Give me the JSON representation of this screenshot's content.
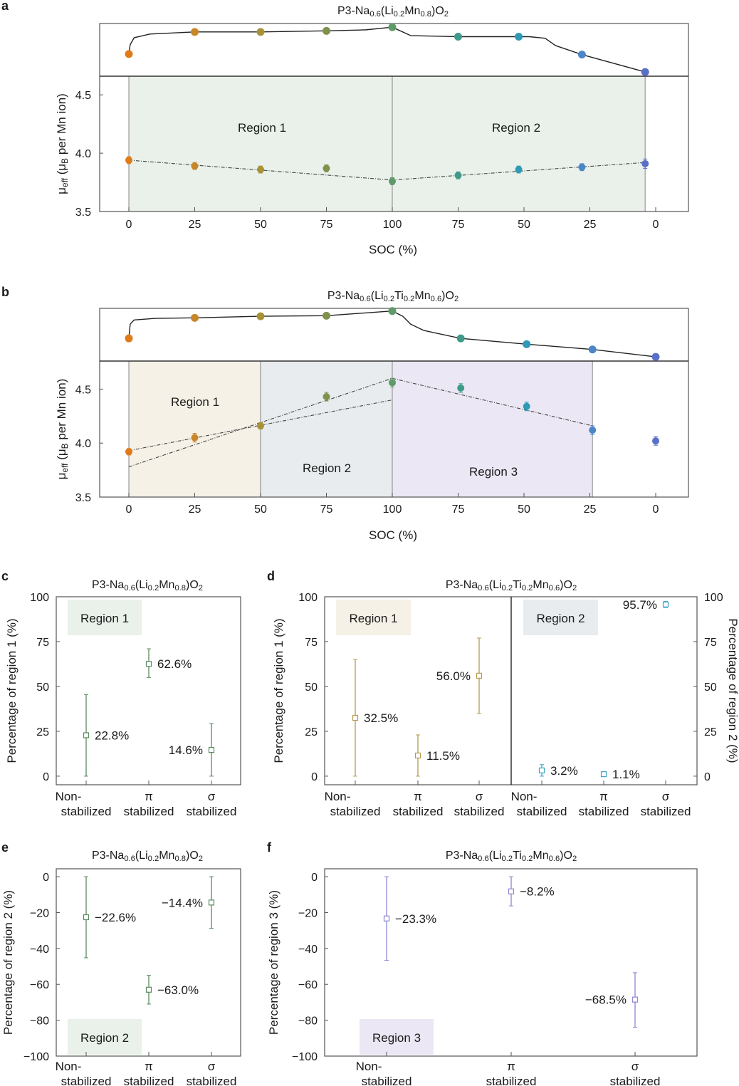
{
  "panel_letters": [
    "a",
    "b",
    "c",
    "d",
    "e",
    "f"
  ],
  "chart_data": [
    {
      "id": "a",
      "type": "scatter",
      "title": [
        [
          "P3-Na",
          0
        ],
        [
          "0.6",
          1
        ],
        [
          "(Li",
          0
        ],
        [
          "0.2",
          1
        ],
        [
          "Mn",
          0
        ],
        [
          "0.8",
          1
        ],
        [
          ")O",
          0
        ],
        [
          "2",
          1
        ]
      ],
      "xlabel": "SOC (%)",
      "ylabel": [
        [
          "μ",
          0
        ],
        [
          "eff",
          1
        ],
        [
          " (",
          0
        ],
        [
          "μ",
          0
        ],
        [
          "B",
          1
        ],
        [
          " per Mn ion)",
          0
        ]
      ],
      "x_tick_labels": [
        "0",
        "25",
        "50",
        "75",
        "100",
        "75",
        "50",
        "25",
        "0"
      ],
      "y_ticks": [
        3.5,
        4.0,
        4.5
      ],
      "y_tick_labels": [
        "3.5",
        "4.0",
        "4.5"
      ],
      "ylim": [
        3.5,
        4.66
      ],
      "regions": [
        {
          "label": "Region 1",
          "from": {
            "phase": "charge",
            "soc": 0
          },
          "to": {
            "phase": "charge",
            "soc": 100
          },
          "color": "#e9f1ea"
        },
        {
          "label": "Region 2",
          "from": {
            "phase": "charge",
            "soc": 100
          },
          "to": {
            "phase": "discharge",
            "soc": 4
          },
          "color": "#e9f1ea"
        }
      ],
      "points": [
        {
          "phase": "charge",
          "soc": 0,
          "value": 3.94,
          "err": 0.03,
          "level": 0.42,
          "color": "#e07b1a"
        },
        {
          "phase": "charge",
          "soc": 25,
          "value": 3.89,
          "err": 0.03,
          "level": 0.84,
          "color": "#c8862a"
        },
        {
          "phase": "charge",
          "soc": 50,
          "value": 3.86,
          "err": 0.03,
          "level": 0.84,
          "color": "#a89238"
        },
        {
          "phase": "charge",
          "soc": 75,
          "value": 3.87,
          "err": 0.03,
          "level": 0.86,
          "color": "#7f914b"
        },
        {
          "phase": "charge",
          "soc": 100,
          "value": 3.76,
          "err": 0.03,
          "level": 0.93,
          "color": "#5e9a6a"
        },
        {
          "phase": "discharge",
          "soc": 75,
          "value": 3.81,
          "err": 0.03,
          "level": 0.75,
          "color": "#3f9a8a"
        },
        {
          "phase": "discharge",
          "soc": 52,
          "value": 3.86,
          "err": 0.03,
          "level": 0.75,
          "color": "#2e9ab5"
        },
        {
          "phase": "discharge",
          "soc": 28,
          "value": 3.88,
          "err": 0.03,
          "level": 0.41,
          "color": "#4b86c6"
        },
        {
          "phase": "discharge",
          "soc": 4,
          "value": 3.91,
          "err": 0.04,
          "level": 0.08,
          "color": "#5a70c8"
        }
      ],
      "fit_lines": [
        [
          {
            "phase": "charge",
            "soc": 0,
            "value": 3.94
          },
          {
            "phase": "charge",
            "soc": 100,
            "value": 3.77
          },
          {
            "phase": "discharge",
            "soc": 4,
            "value": 3.92
          }
        ]
      ],
      "voltage_profile": {
        "charge": [
          [
            0,
            0.42
          ],
          [
            0.5,
            0.6
          ],
          [
            2,
            0.73
          ],
          [
            8,
            0.8
          ],
          [
            25,
            0.84
          ],
          [
            50,
            0.84
          ],
          [
            75,
            0.86
          ],
          [
            90,
            0.88
          ],
          [
            100,
            0.93
          ]
        ],
        "discharge": [
          [
            100,
            0.93
          ],
          [
            93,
            0.77
          ],
          [
            75,
            0.75
          ],
          [
            48,
            0.75
          ],
          [
            42,
            0.72
          ],
          [
            38,
            0.58
          ],
          [
            35,
            0.53
          ],
          [
            28,
            0.41
          ],
          [
            4,
            0.08
          ]
        ]
      }
    },
    {
      "id": "b",
      "type": "scatter",
      "title": [
        [
          "P3-Na",
          0
        ],
        [
          "0.6",
          1
        ],
        [
          "(Li",
          0
        ],
        [
          "0.2",
          1
        ],
        [
          "Ti",
          0
        ],
        [
          "0.2",
          1
        ],
        [
          "Mn",
          0
        ],
        [
          "0.6",
          1
        ],
        [
          ")O",
          0
        ],
        [
          "2",
          1
        ]
      ],
      "xlabel": "SOC (%)",
      "ylabel": [
        [
          "μ",
          0
        ],
        [
          "eff",
          1
        ],
        [
          " (",
          0
        ],
        [
          "μ",
          0
        ],
        [
          "B",
          1
        ],
        [
          " per Mn ion)",
          0
        ]
      ],
      "x_tick_labels": [
        "0",
        "25",
        "50",
        "75",
        "100",
        "75",
        "50",
        "25",
        "0"
      ],
      "y_ticks": [
        3.5,
        4.0,
        4.5
      ],
      "y_tick_labels": [
        "3.5",
        "4.0",
        "4.5"
      ],
      "ylim": [
        3.5,
        4.76
      ],
      "regions": [
        {
          "label": "Region 1",
          "from": {
            "phase": "charge",
            "soc": 0
          },
          "to": {
            "phase": "charge",
            "soc": 50
          },
          "color": "#f5f1e7"
        },
        {
          "label": "Region 2",
          "from": {
            "phase": "charge",
            "soc": 50
          },
          "to": {
            "phase": "charge",
            "soc": 100
          },
          "color": "#e8ecee"
        },
        {
          "label": "Region 3",
          "from": {
            "phase": "charge",
            "soc": 100
          },
          "to": {
            "phase": "discharge",
            "soc": 24
          },
          "color": "#ebe7f4"
        }
      ],
      "points": [
        {
          "phase": "charge",
          "soc": 0,
          "value": 3.92,
          "err": 0.03,
          "level": 0.43,
          "color": "#e07b1a"
        },
        {
          "phase": "charge",
          "soc": 25,
          "value": 4.05,
          "err": 0.04,
          "level": 0.82,
          "color": "#c8862a"
        },
        {
          "phase": "charge",
          "soc": 50,
          "value": 4.16,
          "err": 0.03,
          "level": 0.85,
          "color": "#a89238"
        },
        {
          "phase": "charge",
          "soc": 75,
          "value": 4.43,
          "err": 0.04,
          "level": 0.86,
          "color": "#7f914b"
        },
        {
          "phase": "charge",
          "soc": 100,
          "value": 4.56,
          "err": 0.04,
          "level": 0.95,
          "color": "#5e9a6a"
        },
        {
          "phase": "discharge",
          "soc": 74,
          "value": 4.51,
          "err": 0.04,
          "level": 0.43,
          "color": "#3f9a8a"
        },
        {
          "phase": "discharge",
          "soc": 49,
          "value": 4.34,
          "err": 0.04,
          "level": 0.32,
          "color": "#2e9ab5"
        },
        {
          "phase": "discharge",
          "soc": 24,
          "value": 4.12,
          "err": 0.04,
          "level": 0.22,
          "color": "#4b86c6"
        },
        {
          "phase": "discharge",
          "soc": 0,
          "value": 4.02,
          "err": 0.04,
          "level": 0.08,
          "color": "#5a70c8"
        }
      ],
      "fit_lines": [
        [
          {
            "phase": "charge",
            "soc": 0,
            "value": 3.93
          },
          {
            "phase": "charge",
            "soc": 100,
            "value": 4.4
          }
        ],
        [
          {
            "phase": "charge",
            "soc": 0,
            "value": 3.78
          },
          {
            "phase": "charge",
            "soc": 100,
            "value": 4.6
          }
        ],
        [
          {
            "phase": "charge",
            "soc": 100,
            "value": 4.6
          },
          {
            "phase": "discharge",
            "soc": 24,
            "value": 4.16
          }
        ]
      ],
      "voltage_profile": {
        "charge": [
          [
            0,
            0.43
          ],
          [
            0.5,
            0.7
          ],
          [
            2,
            0.78
          ],
          [
            10,
            0.81
          ],
          [
            25,
            0.82
          ],
          [
            50,
            0.85
          ],
          [
            75,
            0.86
          ],
          [
            100,
            0.95
          ]
        ],
        "discharge": [
          [
            100,
            0.95
          ],
          [
            96,
            0.85
          ],
          [
            93,
            0.7
          ],
          [
            88,
            0.58
          ],
          [
            74,
            0.43
          ],
          [
            49,
            0.32
          ],
          [
            24,
            0.22
          ],
          [
            0,
            0.08
          ]
        ]
      }
    },
    {
      "id": "c",
      "type": "scatter",
      "title": [
        [
          "P3-Na",
          0
        ],
        [
          "0.6",
          1
        ],
        [
          "(Li",
          0
        ],
        [
          "0.2",
          1
        ],
        [
          "Mn",
          0
        ],
        [
          "0.8",
          1
        ],
        [
          ")O",
          0
        ],
        [
          "2",
          1
        ]
      ],
      "ylabel": "Percentage of region 1 (%)",
      "ylim": [
        -4.8,
        100
      ],
      "y_ticks": [
        0,
        25,
        50,
        75,
        100
      ],
      "y_tick_labels": [
        "0",
        "25",
        "50",
        "75",
        "100"
      ],
      "categories": [
        [
          "Non-",
          "stabilized"
        ],
        [
          "π",
          "stabilized"
        ],
        [
          "σ",
          "stabilized"
        ]
      ],
      "region_label": "Region 1",
      "region_color": "#e9f1ea",
      "series": [
        {
          "color": "#5a8a5e",
          "values": [
            22.8,
            62.6,
            14.6
          ],
          "err_low": [
            0,
            55,
            0
          ],
          "err_high": [
            45.5,
            71,
            29.3
          ],
          "labels": [
            "22.8%",
            "62.6%",
            "14.6%"
          ]
        }
      ]
    },
    {
      "id": "d",
      "type": "scatter",
      "title": [
        [
          "P3-Na",
          0
        ],
        [
          "0.6",
          1
        ],
        [
          "(Li",
          0
        ],
        [
          "0.2",
          1
        ],
        [
          "Ti",
          0
        ],
        [
          "0.2",
          1
        ],
        [
          "Mn",
          0
        ],
        [
          "0.6",
          1
        ],
        [
          ")O",
          0
        ],
        [
          "2",
          1
        ]
      ],
      "ylabel": "Percentage of region 1 (%)",
      "ylabel_right": "Percentage of region 2 (%)",
      "ylim": [
        -4.8,
        100
      ],
      "y_ticks": [
        0,
        25,
        50,
        75,
        100
      ],
      "y_tick_labels": [
        "0",
        "25",
        "50",
        "75",
        "100"
      ],
      "categories": [
        [
          "Non-",
          "stabilized"
        ],
        [
          "π",
          "stabilized"
        ],
        [
          "σ",
          "stabilized"
        ],
        [
          "Non-",
          "stabilized"
        ],
        [
          "π",
          "stabilized"
        ],
        [
          "σ",
          "stabilized"
        ]
      ],
      "region_labels": [
        {
          "label": "Region 1",
          "color": "#f5f1e7"
        },
        {
          "label": "Region 2",
          "color": "#e8ecee"
        }
      ],
      "series": [
        {
          "color": "#b59a4e",
          "values": [
            32.5,
            11.5,
            56.0
          ],
          "err_low": [
            0,
            0,
            35
          ],
          "err_high": [
            65,
            23,
            77
          ],
          "labels": [
            "32.5%",
            "11.5%",
            "56.0%"
          ]
        },
        {
          "color": "#3ba3c5",
          "values": [
            3.2,
            1.1,
            95.7
          ],
          "err_low": [
            0,
            0.3,
            94
          ],
          "err_high": [
            6.4,
            1.9,
            97.4
          ],
          "labels": [
            "3.2%",
            "1.1%",
            "95.7%"
          ]
        }
      ]
    },
    {
      "id": "e",
      "type": "scatter",
      "title": [
        [
          "P3-Na",
          0
        ],
        [
          "0.6",
          1
        ],
        [
          "(Li",
          0
        ],
        [
          "0.2",
          1
        ],
        [
          "Mn",
          0
        ],
        [
          "0.8",
          1
        ],
        [
          ")O",
          0
        ],
        [
          "2",
          1
        ]
      ],
      "ylabel": "Percentage of region 2 (%)",
      "ylim": [
        -100,
        4.4
      ],
      "y_ticks": [
        0,
        -20,
        -40,
        -60,
        -80,
        -100
      ],
      "y_tick_labels": [
        "0",
        "−20",
        "−40",
        "−60",
        "−80",
        "−100"
      ],
      "categories": [
        [
          "Non-",
          "stabilized"
        ],
        [
          "π",
          "stabilized"
        ],
        [
          "σ",
          "stabilized"
        ]
      ],
      "region_label": "Region 2",
      "region_color": "#e9f1ea",
      "series": [
        {
          "color": "#5a8a5e",
          "values": [
            -22.6,
            -63.0,
            -14.4
          ],
          "err_low": [
            -45.2,
            -71,
            -28.8
          ],
          "err_high": [
            0,
            -55,
            0
          ],
          "labels": [
            "−22.6%",
            "−63.0%",
            "−14.4%"
          ]
        }
      ]
    },
    {
      "id": "f",
      "type": "scatter",
      "title": [
        [
          "P3-Na",
          0
        ],
        [
          "0.6",
          1
        ],
        [
          "(Li",
          0
        ],
        [
          "0.2",
          1
        ],
        [
          "Ti",
          0
        ],
        [
          "0.2",
          1
        ],
        [
          "Mn",
          0
        ],
        [
          "0.6",
          1
        ],
        [
          ")O",
          0
        ],
        [
          "2",
          1
        ]
      ],
      "ylabel": "Percentage of region 3 (%)",
      "ylim": [
        -100,
        4.4
      ],
      "y_ticks": [
        0,
        -20,
        -40,
        -60,
        -80,
        -100
      ],
      "y_tick_labels": [
        "0",
        "−20",
        "−40",
        "−60",
        "−80",
        "−100"
      ],
      "categories": [
        [
          "Non-",
          "stabilized"
        ],
        [
          "π",
          "stabilized"
        ],
        [
          "σ",
          "stabilized"
        ]
      ],
      "region_label": "Region 3",
      "region_color": "#ebe7f4",
      "series": [
        {
          "color": "#8c86d4",
          "values": [
            -23.3,
            -8.2,
            -68.5
          ],
          "err_low": [
            -46.6,
            -16.3,
            -83.9
          ],
          "err_high": [
            0,
            0,
            -53.5
          ],
          "labels": [
            "−23.3%",
            "−8.2%",
            "−68.5%"
          ]
        }
      ]
    }
  ]
}
